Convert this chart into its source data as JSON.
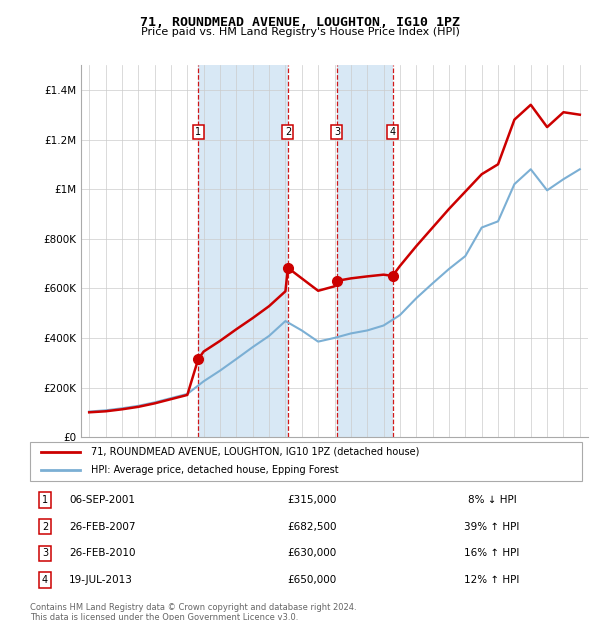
{
  "title": "71, ROUNDMEAD AVENUE, LOUGHTON, IG10 1PZ",
  "subtitle": "Price paid vs. HM Land Registry's House Price Index (HPI)",
  "legend_line1": "71, ROUNDMEAD AVENUE, LOUGHTON, IG10 1PZ (detached house)",
  "legend_line2": "HPI: Average price, detached house, Epping Forest",
  "footer1": "Contains HM Land Registry data © Crown copyright and database right 2024.",
  "footer2": "This data is licensed under the Open Government Licence v3.0.",
  "sale_events": [
    {
      "num": 1,
      "date": "06-SEP-2001",
      "price": "£315,000",
      "hpi": "8% ↓ HPI",
      "year": 2001.67,
      "price_val": 315000
    },
    {
      "num": 2,
      "date": "26-FEB-2007",
      "price": "£682,500",
      "hpi": "39% ↑ HPI",
      "year": 2007.15,
      "price_val": 682500
    },
    {
      "num": 3,
      "date": "26-FEB-2010",
      "price": "£630,000",
      "hpi": "16% ↑ HPI",
      "year": 2010.15,
      "price_val": 630000
    },
    {
      "num": 4,
      "date": "19-JUL-2013",
      "price": "£650,000",
      "hpi": "12% ↑ HPI",
      "year": 2013.55,
      "price_val": 650000
    }
  ],
  "color_price": "#cc0000",
  "color_hpi": "#7bafd4",
  "color_vline": "#cc0000",
  "color_shade": "#d8e8f5",
  "xlim": [
    1994.5,
    2025.5
  ],
  "ylim": [
    0,
    1500000
  ],
  "yticks": [
    0,
    200000,
    400000,
    600000,
    800000,
    1000000,
    1200000,
    1400000
  ],
  "ytick_labels": [
    "£0",
    "£200K",
    "£400K",
    "£600K",
    "£800K",
    "£1M",
    "£1.2M",
    "£1.4M"
  ],
  "xticks": [
    1995,
    1996,
    1997,
    1998,
    1999,
    2000,
    2001,
    2002,
    2003,
    2004,
    2005,
    2006,
    2007,
    2008,
    2009,
    2010,
    2011,
    2012,
    2013,
    2014,
    2015,
    2016,
    2017,
    2018,
    2019,
    2020,
    2021,
    2022,
    2023,
    2024,
    2025
  ],
  "hpi_x": [
    1995,
    1996,
    1997,
    1998,
    1999,
    2000,
    2001,
    2002,
    2003,
    2004,
    2005,
    2006,
    2007,
    2008,
    2009,
    2010,
    2011,
    2012,
    2013,
    2014,
    2015,
    2016,
    2017,
    2018,
    2019,
    2020,
    2021,
    2022,
    2023,
    2024,
    2025
  ],
  "hpi_y": [
    103000,
    108000,
    116000,
    126000,
    140000,
    157000,
    174000,
    225000,
    268000,
    315000,
    363000,
    408000,
    468000,
    430000,
    385000,
    400000,
    418000,
    430000,
    450000,
    492000,
    560000,
    620000,
    678000,
    730000,
    845000,
    870000,
    1020000,
    1080000,
    995000,
    1040000,
    1080000
  ],
  "price_x": [
    1995,
    1996,
    1997,
    1998,
    1999,
    2000,
    2001,
    2001.67,
    2002,
    2003,
    2004,
    2005,
    2006,
    2007,
    2007.15,
    2008,
    2009,
    2010,
    2010.15,
    2011,
    2012,
    2013,
    2013.55,
    2014,
    2015,
    2016,
    2017,
    2018,
    2019,
    2020,
    2021,
    2022,
    2023,
    2024,
    2025
  ],
  "price_y": [
    100000,
    104000,
    112000,
    122000,
    136000,
    153000,
    170000,
    315000,
    345000,
    388000,
    435000,
    480000,
    528000,
    588000,
    682500,
    640000,
    590000,
    608000,
    630000,
    640000,
    648000,
    655000,
    650000,
    690000,
    770000,
    845000,
    920000,
    990000,
    1060000,
    1100000,
    1280000,
    1340000,
    1250000,
    1310000,
    1300000
  ]
}
